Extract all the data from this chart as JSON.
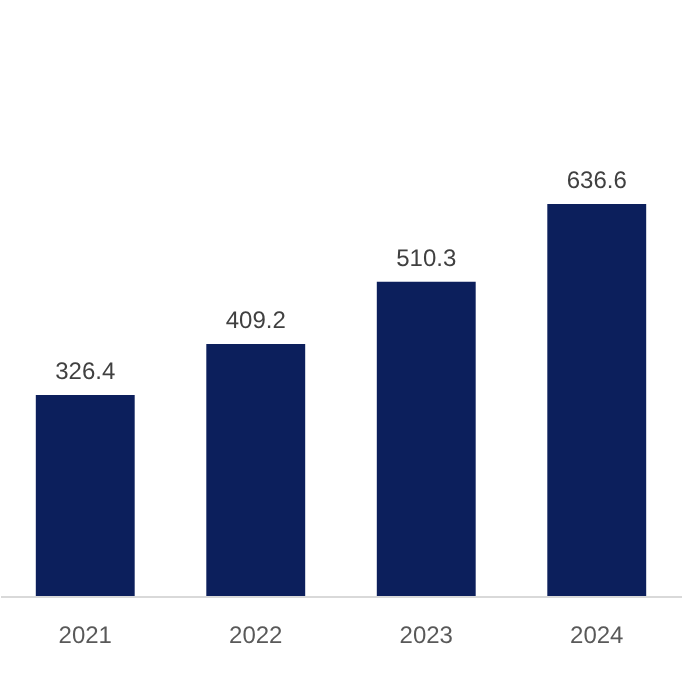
{
  "chart_data": {
    "type": "bar",
    "categories": [
      "2021",
      "2022",
      "2023",
      "2024"
    ],
    "values": [
      326.4,
      409.2,
      510.3,
      636.6
    ],
    "color": "#0c1f5c",
    "data_labels": true
  }
}
